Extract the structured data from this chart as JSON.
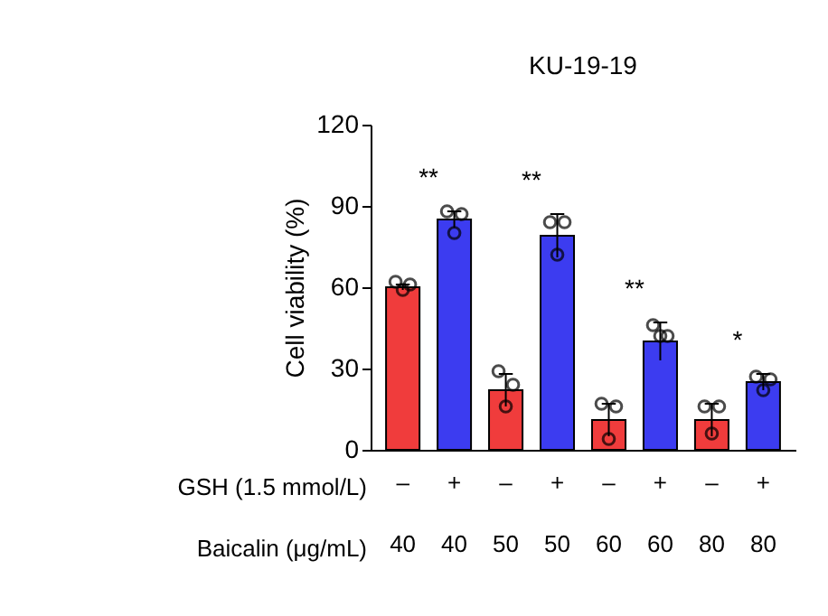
{
  "chart_data": {
    "type": "bar",
    "title": "KU-19-19",
    "ylabel": "Cell viability (%)",
    "categories": [
      "–\n40",
      "+\n40",
      "–\n50",
      "+\n50",
      "–\n60",
      "+\n60",
      "–\n80",
      "+\n80"
    ],
    "series": [
      {
        "values": [
          60,
          85,
          22,
          79,
          11,
          40,
          11,
          25
        ],
        "colors": [
          "#f03c3c",
          "#3c3cf0",
          "#f03c3c",
          "#3c3cf0",
          "#f03c3c",
          "#3c3cf0",
          "#f03c3c",
          "#3c3cf0"
        ],
        "errors": [
          1,
          3,
          6,
          8,
          6,
          7,
          6,
          3
        ]
      },
      {
        "type": "scatter",
        "color": "#000000",
        "marker": "circle",
        "x": [
          "–\n40",
          "–\n40",
          "–\n40",
          "+\n40",
          "+\n40",
          "+\n40",
          "–\n50",
          "–\n50",
          "–\n50",
          "+\n50",
          "+\n50",
          "+\n50",
          "–\n60",
          "–\n60",
          "–\n60",
          "+\n60",
          "+\n60",
          "+\n60",
          "–\n80",
          "–\n80",
          "–\n80",
          "+\n80",
          "+\n80",
          "+\n80"
        ],
        "values": [
          62,
          61,
          59,
          88,
          87,
          80,
          29,
          24,
          16,
          84,
          84,
          72,
          17,
          16,
          4,
          46,
          42,
          42,
          16,
          16,
          6,
          27,
          26,
          22
        ]
      }
    ],
    "ylim": [
      0,
      120
    ],
    "yticks": [
      0,
      30,
      60,
      90,
      120
    ],
    "grid": false,
    "annotations": [
      "GSH (1.5 mmol/L)",
      "Baicalin (μg/mL)",
      "**",
      "**",
      "**",
      "*"
    ]
  }
}
